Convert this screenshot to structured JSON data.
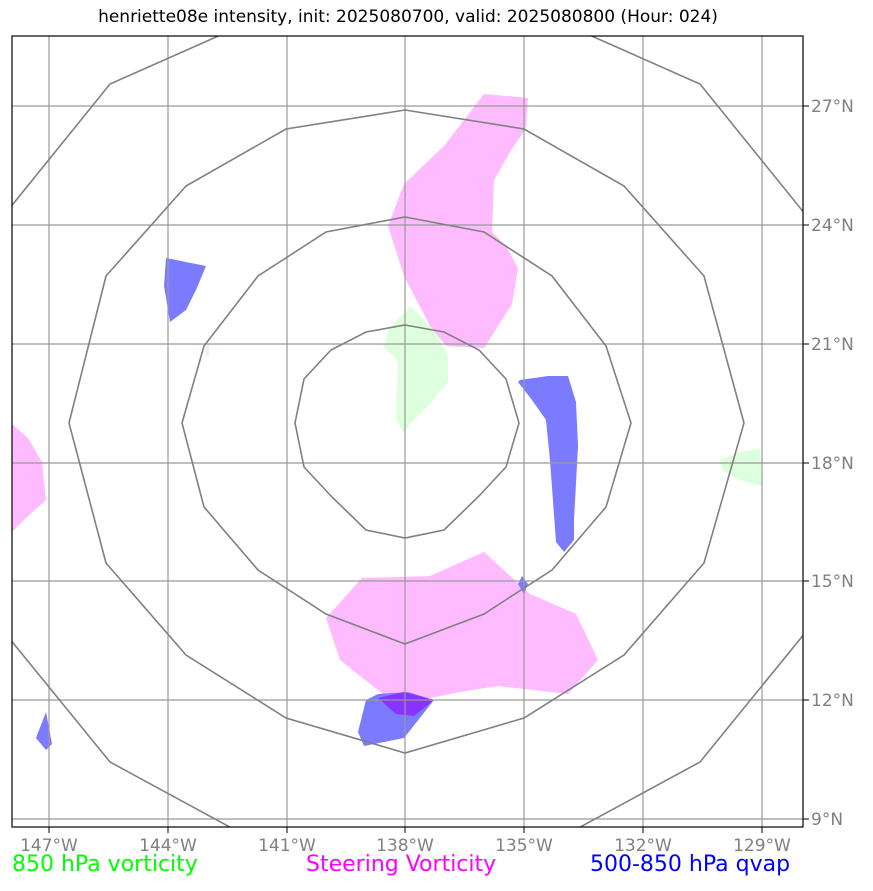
{
  "title": "henriette08e intensity, init: 2025080700, valid: 2025080800 (Hour: 024)",
  "map": {
    "lon_range": [
      -148,
      -128.8
    ],
    "lat_range": [
      8.8,
      28.8
    ],
    "grid_lines": true,
    "range_rings": true,
    "center": {
      "lon": -138,
      "lat": 19
    }
  },
  "axes": {
    "lon_ticks": [
      {
        "value": -147,
        "label": "147°W"
      },
      {
        "value": -144,
        "label": "144°W"
      },
      {
        "value": -141,
        "label": "141°W"
      },
      {
        "value": -138,
        "label": "138°W"
      },
      {
        "value": -135,
        "label": "135°W"
      },
      {
        "value": -132,
        "label": "132°W"
      },
      {
        "value": -129,
        "label": "129°W"
      }
    ],
    "lat_ticks": [
      {
        "value": 9,
        "label": "9°N"
      },
      {
        "value": 12,
        "label": "12°N"
      },
      {
        "value": 15,
        "label": "15°N"
      },
      {
        "value": 18,
        "label": "18°N"
      },
      {
        "value": 21,
        "label": "21°N"
      },
      {
        "value": 24,
        "label": "24°N"
      },
      {
        "value": 27,
        "label": "27°N"
      }
    ]
  },
  "legend": {
    "green": {
      "label": "850 hPa vorticity",
      "color": "#00ff00"
    },
    "magenta": {
      "label": "Steering Vorticity",
      "color": "#ff00ff"
    },
    "blue": {
      "label": "500-850 hPa qvap",
      "color": "#0000ff"
    }
  },
  "colors": {
    "green_fill": "#ddffdd",
    "magenta_fill": "#ffbbff",
    "blue_fill": "#7b7bff",
    "grid": "#999999",
    "rings": "#808080"
  }
}
